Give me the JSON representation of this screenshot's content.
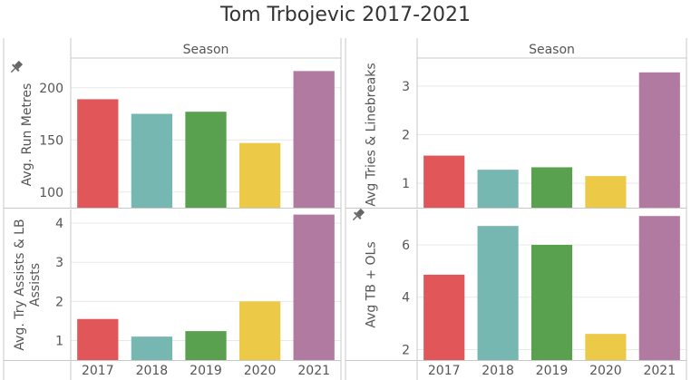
{
  "title": "Tom Trbojevic 2017-2021",
  "column_header": "Season",
  "colors": {
    "2017": "#e15759",
    "2018": "#76b7b2",
    "2019": "#59a14f",
    "2020": "#edc948",
    "2021": "#b07aa1",
    "grid": "#e9e9e9",
    "border": "#c8c8c8",
    "text": "#555555"
  },
  "icons": [
    "pin-icon"
  ],
  "chart_data": [
    {
      "type": "bar",
      "ylabel": "Avg. Run Metres",
      "categories": [
        "2017",
        "2018",
        "2019",
        "2020",
        "2021"
      ],
      "values": [
        189,
        175,
        177,
        147,
        216
      ],
      "ylim": [
        85,
        225
      ],
      "ticks": [
        100,
        150,
        200
      ],
      "pinned": true,
      "grid": true
    },
    {
      "type": "bar",
      "ylabel": "Avg Tries & Linebreaks",
      "categories": [
        "2017",
        "2018",
        "2019",
        "2020",
        "2021"
      ],
      "values": [
        1.57,
        1.28,
        1.33,
        1.15,
        3.28
      ],
      "ylim": [
        0.5,
        3.5
      ],
      "ticks": [
        1,
        2,
        3
      ],
      "pinned": false,
      "grid": true
    },
    {
      "type": "bar",
      "ylabel": "Avg. Try Assists & LB Assists",
      "categories": [
        "2017",
        "2018",
        "2019",
        "2020",
        "2021"
      ],
      "values": [
        1.55,
        1.1,
        1.24,
        2.0,
        4.22
      ],
      "ylim": [
        0.5,
        4.35
      ],
      "ticks": [
        1,
        2,
        3,
        4
      ],
      "pinned": false,
      "grid": true
    },
    {
      "type": "bar",
      "ylabel": "Avg TB + OLs",
      "categories": [
        "2017",
        "2018",
        "2019",
        "2020",
        "2021"
      ],
      "values": [
        4.86,
        6.72,
        6.0,
        2.6,
        7.1
      ],
      "ylim": [
        1.6,
        7.35
      ],
      "ticks": [
        2,
        4,
        6
      ],
      "pinned": true,
      "grid": true
    }
  ]
}
